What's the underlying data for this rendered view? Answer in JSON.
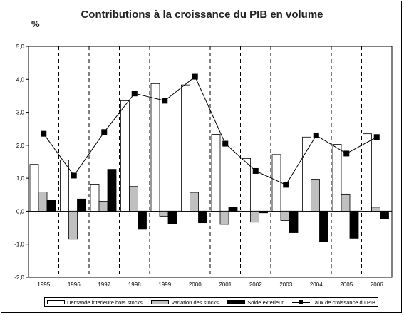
{
  "chart_data": {
    "type": "bar",
    "title": "Contributions à la croissance du PIB en volume",
    "ylabel": "%",
    "xlabel": "",
    "ylim": [
      -2.0,
      5.0
    ],
    "yticks": [
      "-2,0",
      "-1,0",
      "0,0",
      "1,0",
      "2,0",
      "3,0",
      "4,0",
      "5,0"
    ],
    "ytick_values": [
      -2,
      -1,
      0,
      1,
      2,
      3,
      4,
      5
    ],
    "categories": [
      "1995",
      "1996",
      "1997",
      "1998",
      "1999",
      "2000",
      "2001",
      "2002",
      "2003",
      "2004",
      "2005",
      "2006"
    ],
    "series": [
      {
        "name": "Demande interieure hors stocks",
        "kind": "bar",
        "color": "#ffffff",
        "values": [
          1.42,
          1.55,
          0.82,
          3.35,
          3.87,
          3.83,
          2.33,
          1.6,
          1.72,
          2.25,
          2.03,
          2.35
        ]
      },
      {
        "name": "Variation des stocks",
        "kind": "bar",
        "color": "#c0c0c0",
        "values": [
          0.58,
          -0.85,
          0.3,
          0.75,
          -0.15,
          0.57,
          -0.4,
          -0.33,
          -0.28,
          0.97,
          0.52,
          0.12
        ]
      },
      {
        "name": "Solde exterieur",
        "kind": "bar",
        "color": "#000000",
        "values": [
          0.34,
          0.37,
          1.27,
          -0.55,
          -0.38,
          -0.35,
          0.12,
          -0.05,
          -0.65,
          -0.92,
          -0.82,
          -0.22
        ]
      },
      {
        "name": "Taux de croissance du PIB",
        "kind": "line",
        "color": "#000000",
        "values": [
          2.35,
          1.08,
          2.4,
          3.57,
          3.35,
          4.08,
          2.05,
          1.22,
          0.8,
          2.3,
          1.75,
          2.25
        ]
      }
    ],
    "grid": false,
    "legend": "bottom"
  }
}
